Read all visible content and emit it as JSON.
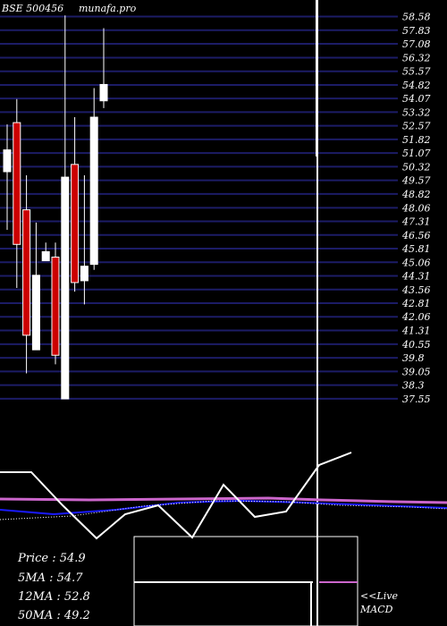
{
  "chart_data": {
    "type": "candlestick",
    "title": "BSE 500456",
    "watermark": "munafa.pro",
    "colors": {
      "background": "#000000",
      "grid": "#1c1c66",
      "up": "#ffffff",
      "down": "#cc0000",
      "ma_blue": "#1a1aff",
      "ma_purple": "#cc66cc",
      "macd": "#ffffff"
    },
    "ylim": [
      37.2,
      59.0
    ],
    "y_ticks": [
      "58.58",
      "57.83",
      "57.08",
      "56.32",
      "55.57",
      "54.82",
      "54.07",
      "53.32",
      "52.57",
      "51.82",
      "51.07",
      "50.32",
      "49.57",
      "48.82",
      "48.06",
      "47.31",
      "46.56",
      "45.81",
      "45.06",
      "44.31",
      "43.56",
      "42.81",
      "42.06",
      "41.31",
      "40.55",
      "39.8",
      "39.05",
      "38.3",
      "37.55"
    ],
    "candles": [
      {
        "i": 0,
        "open": 49.7,
        "high": 52.3,
        "low": 46.5,
        "close": 50.9
      },
      {
        "i": 1,
        "open": 52.4,
        "high": 53.7,
        "low": 43.3,
        "close": 45.7
      },
      {
        "i": 2,
        "open": 47.6,
        "high": 49.5,
        "low": 38.6,
        "close": 40.7
      },
      {
        "i": 3,
        "open": 39.9,
        "high": 46.9,
        "low": 39.9,
        "close": 44.0
      },
      {
        "i": 4,
        "open": 44.8,
        "high": 45.8,
        "low": 44.8,
        "close": 45.3
      },
      {
        "i": 5,
        "open": 45.0,
        "high": 45.8,
        "low": 39.1,
        "close": 39.6
      },
      {
        "i": 6,
        "open": 37.2,
        "high": 58.3,
        "low": 37.2,
        "close": 49.4
      },
      {
        "i": 7,
        "open": 50.1,
        "high": 52.7,
        "low": 43.1,
        "close": 43.6
      },
      {
        "i": 8,
        "open": 43.7,
        "high": 49.5,
        "low": 42.4,
        "close": 44.5
      },
      {
        "i": 9,
        "open": 44.6,
        "high": 54.3,
        "low": 44.3,
        "close": 52.7
      },
      {
        "i": 10,
        "open": 53.6,
        "high": 57.6,
        "low": 53.2,
        "close": 54.5
      }
    ],
    "indicator_labels": {
      "price": "Price   : 54.9",
      "ma5": "5MA : 54.7",
      "ma12": "12MA : 52.8",
      "ma50": "50MA : 49.2"
    },
    "macd_label": {
      "line1": "<<Live",
      "line2": "MACD"
    }
  }
}
